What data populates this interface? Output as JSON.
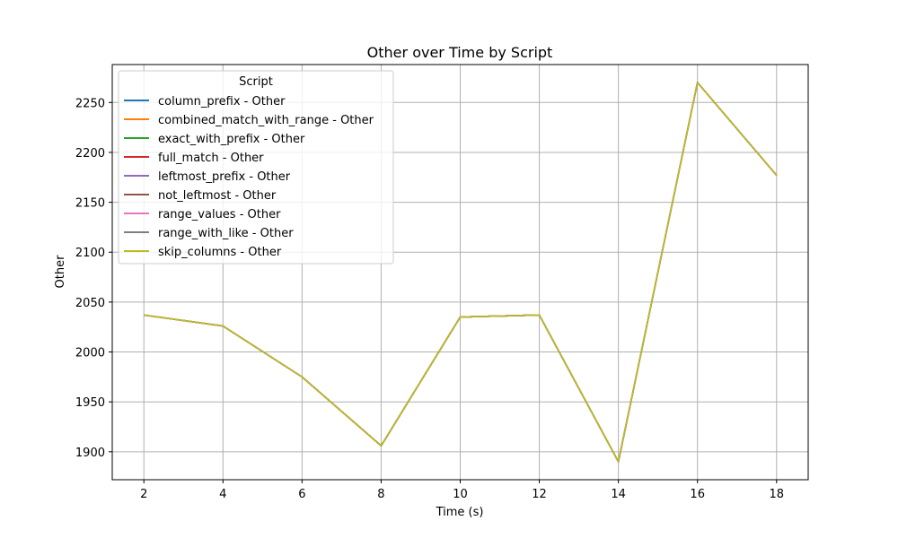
{
  "chart_data": {
    "type": "line",
    "title": "Other over Time by Script",
    "xlabel": "Time (s)",
    "ylabel": "Other",
    "xlim": [
      1.2,
      18.8
    ],
    "ylim": [
      1872,
      2288
    ],
    "xticks": [
      2,
      4,
      6,
      8,
      10,
      12,
      14,
      16,
      18
    ],
    "yticks": [
      1900,
      1950,
      2000,
      2050,
      2100,
      2150,
      2200,
      2250
    ],
    "grid": true,
    "legend": {
      "title": "Script",
      "placement": "upper-left"
    },
    "x": [
      2,
      4,
      6,
      8,
      10,
      12,
      14,
      16,
      18
    ],
    "series": [
      {
        "name": "column_prefix - Other",
        "color": "#1f77b4",
        "values": [
          2037,
          2026,
          1975,
          1906,
          2035,
          2037,
          1890,
          2270,
          2177
        ]
      },
      {
        "name": "combined_match_with_range - Other",
        "color": "#ff7f0e",
        "values": [
          2037,
          2026,
          1975,
          1906,
          2035,
          2037,
          1890,
          2270,
          2177
        ]
      },
      {
        "name": "exact_with_prefix - Other",
        "color": "#2ca02c",
        "values": [
          2037,
          2026,
          1975,
          1906,
          2035,
          2037,
          1890,
          2270,
          2177
        ]
      },
      {
        "name": "full_match - Other",
        "color": "#d62728",
        "values": [
          2037,
          2026,
          1975,
          1906,
          2035,
          2037,
          1890,
          2270,
          2177
        ]
      },
      {
        "name": "leftmost_prefix - Other",
        "color": "#9467bd",
        "values": [
          2037,
          2026,
          1975,
          1906,
          2035,
          2037,
          1890,
          2270,
          2177
        ]
      },
      {
        "name": "not_leftmost - Other",
        "color": "#8c564b",
        "values": [
          2037,
          2026,
          1975,
          1906,
          2035,
          2037,
          1890,
          2270,
          2177
        ]
      },
      {
        "name": "range_values - Other",
        "color": "#e377c2",
        "values": [
          2037,
          2026,
          1975,
          1906,
          2035,
          2037,
          1890,
          2270,
          2177
        ]
      },
      {
        "name": "range_with_like - Other",
        "color": "#7f7f7f",
        "values": [
          2037,
          2026,
          1975,
          1906,
          2035,
          2037,
          1890,
          2270,
          2177
        ]
      },
      {
        "name": "skip_columns - Other",
        "color": "#bcbd22",
        "values": [
          2037,
          2026,
          1975,
          1906,
          2035,
          2037,
          1890,
          2270,
          2177
        ]
      }
    ]
  }
}
